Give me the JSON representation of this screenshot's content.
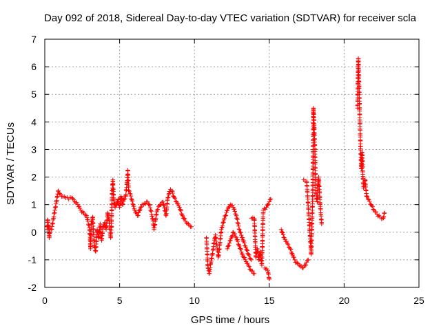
{
  "chart_data": {
    "type": "scatter",
    "title": "Day 092 of 2018, Sidereal Day-to-day VTEC variation (SDTVAR) for receiver scla",
    "xlabel": "GPS time / hours",
    "ylabel": "SDTVAR / TECUs",
    "xlim": [
      0,
      25
    ],
    "ylim": [
      -2,
      7
    ],
    "xticks": [
      0,
      5,
      10,
      15,
      20,
      25
    ],
    "yticks": [
      -2,
      -1,
      0,
      1,
      2,
      3,
      4,
      5,
      6,
      7
    ],
    "grid": true,
    "marker": "+",
    "color": "#ff0000",
    "series": [
      {
        "name": "SDTVAR",
        "trace": [
          [
            0.15,
            0.1
          ],
          [
            0.2,
            0.45
          ],
          [
            0.25,
            0.2
          ],
          [
            0.3,
            -0.2
          ],
          [
            0.35,
            0.15
          ],
          [
            0.45,
            0.1
          ],
          [
            0.9,
            1.5
          ],
          [
            1.0,
            1.4
          ],
          [
            1.2,
            1.3
          ],
          [
            1.4,
            1.25
          ],
          [
            1.6,
            1.2
          ],
          [
            1.8,
            1.25
          ],
          [
            2.0,
            1.1
          ],
          [
            2.2,
            1.0
          ],
          [
            2.4,
            0.8
          ],
          [
            2.6,
            0.7
          ],
          [
            2.8,
            0.6
          ],
          [
            3.0,
            0.1
          ],
          [
            3.05,
            -0.6
          ],
          [
            3.1,
            0.3
          ],
          [
            3.2,
            0.55
          ],
          [
            3.3,
            -0.5
          ],
          [
            3.4,
            -0.7
          ],
          [
            3.5,
            0.1
          ],
          [
            3.6,
            -0.2
          ],
          [
            3.7,
            0.3
          ],
          [
            3.8,
            -0.3
          ],
          [
            3.9,
            0.2
          ],
          [
            4.0,
            0.35
          ],
          [
            4.1,
            0.1
          ],
          [
            4.2,
            0.7
          ],
          [
            4.3,
            0.4
          ],
          [
            4.4,
            -0.2
          ],
          [
            4.45,
            0.2
          ],
          [
            4.5,
            1.5
          ],
          [
            4.55,
            1.9
          ],
          [
            4.6,
            1.2
          ],
          [
            4.7,
            0.9
          ],
          [
            4.8,
            1.0
          ],
          [
            4.9,
            1.2
          ],
          [
            5.0,
            0.9
          ],
          [
            5.1,
            1.3
          ],
          [
            5.2,
            1.0
          ],
          [
            5.3,
            1.2
          ],
          [
            5.4,
            1.3
          ],
          [
            5.5,
            1.8
          ],
          [
            5.55,
            2.25
          ],
          [
            5.6,
            1.5
          ],
          [
            5.7,
            1.4
          ],
          [
            5.8,
            1.2
          ],
          [
            5.9,
            1.0
          ],
          [
            6.0,
            0.8
          ],
          [
            6.2,
            0.6
          ],
          [
            6.4,
            0.9
          ],
          [
            6.5,
            1.0
          ],
          [
            6.6,
            1.0
          ],
          [
            6.8,
            1.1
          ],
          [
            7.0,
            1.0
          ],
          [
            7.2,
            0.5
          ],
          [
            7.3,
            0.1
          ],
          [
            7.5,
            0.8
          ],
          [
            7.7,
            1.0
          ],
          [
            7.9,
            1.1
          ],
          [
            8.1,
            0.6
          ],
          [
            8.2,
            1.2
          ],
          [
            8.3,
            1.4
          ],
          [
            8.4,
            1.55
          ],
          [
            8.5,
            1.5
          ],
          [
            8.6,
            1.3
          ],
          [
            8.8,
            1.1
          ],
          [
            9.0,
            0.9
          ],
          [
            9.2,
            0.6
          ],
          [
            9.4,
            0.4
          ],
          [
            9.6,
            0.3
          ],
          [
            9.8,
            0.2
          ],
          [
            10.8,
            -0.2
          ],
          [
            10.9,
            -1.3
          ],
          [
            11.0,
            -1.5
          ],
          [
            11.1,
            -1.1
          ],
          [
            11.2,
            -0.8
          ],
          [
            11.3,
            -0.4
          ],
          [
            11.4,
            -0.1
          ],
          [
            11.5,
            -0.5
          ],
          [
            11.6,
            -0.9
          ],
          [
            11.8,
            0.1
          ],
          [
            12.0,
            0.5
          ],
          [
            12.2,
            0.8
          ],
          [
            12.4,
            1.0
          ],
          [
            12.6,
            0.9
          ],
          [
            12.8,
            0.6
          ],
          [
            13.0,
            0.1
          ],
          [
            13.2,
            -0.2
          ],
          [
            13.4,
            -0.5
          ],
          [
            13.6,
            -0.8
          ],
          [
            13.8,
            -1.0
          ],
          [
            12.2,
            -0.6
          ],
          [
            12.4,
            -0.3
          ],
          [
            12.6,
            0.0
          ],
          [
            12.8,
            -0.2
          ],
          [
            13.0,
            -0.5
          ],
          [
            13.2,
            -0.8
          ],
          [
            13.4,
            -1.0
          ],
          [
            13.6,
            -1.2
          ],
          [
            13.8,
            -1.4
          ],
          [
            14.0,
            -1.5
          ],
          [
            13.8,
            0.5
          ],
          [
            14.0,
            0.5
          ],
          [
            14.1,
            -0.9
          ],
          [
            14.2,
            -0.6
          ],
          [
            14.3,
            -1.0
          ],
          [
            14.4,
            -0.7
          ],
          [
            14.5,
            -1.2
          ],
          [
            14.6,
            0.8
          ],
          [
            14.8,
            0.9
          ],
          [
            15.0,
            1.1
          ],
          [
            15.1,
            1.2
          ],
          [
            14.7,
            -1.3
          ],
          [
            14.9,
            -1.4
          ],
          [
            15.0,
            -1.7
          ],
          [
            15.8,
            0.1
          ],
          [
            16.0,
            -0.2
          ],
          [
            16.2,
            -0.4
          ],
          [
            16.4,
            -0.6
          ],
          [
            16.6,
            -0.9
          ],
          [
            16.8,
            -1.1
          ],
          [
            17.0,
            -1.2
          ],
          [
            17.2,
            -1.3
          ],
          [
            17.4,
            -1.2
          ],
          [
            17.6,
            -1.0
          ],
          [
            17.3,
            1.9
          ],
          [
            17.5,
            1.85
          ],
          [
            17.8,
            -0.8
          ],
          [
            17.9,
            1.2
          ],
          [
            17.95,
            4.5
          ],
          [
            18.0,
            3.8
          ],
          [
            18.05,
            3.0
          ],
          [
            18.1,
            1.5
          ],
          [
            18.2,
            1.1
          ],
          [
            18.3,
            2.0
          ],
          [
            18.4,
            1.0
          ],
          [
            18.5,
            0.3
          ],
          [
            20.9,
            4.5
          ],
          [
            20.95,
            6.3
          ],
          [
            21.0,
            5.3
          ],
          [
            21.05,
            4.0
          ],
          [
            21.1,
            3.1
          ],
          [
            21.15,
            2.3
          ],
          [
            21.2,
            2.9
          ],
          [
            21.25,
            2.1
          ],
          [
            21.3,
            1.6
          ],
          [
            21.4,
            1.9
          ],
          [
            21.5,
            1.3
          ],
          [
            21.6,
            1.2
          ],
          [
            21.8,
            1.0
          ],
          [
            22.0,
            0.8
          ],
          [
            22.2,
            0.65
          ],
          [
            22.4,
            0.55
          ],
          [
            22.6,
            0.5
          ],
          [
            22.7,
            0.7
          ]
        ]
      }
    ]
  }
}
